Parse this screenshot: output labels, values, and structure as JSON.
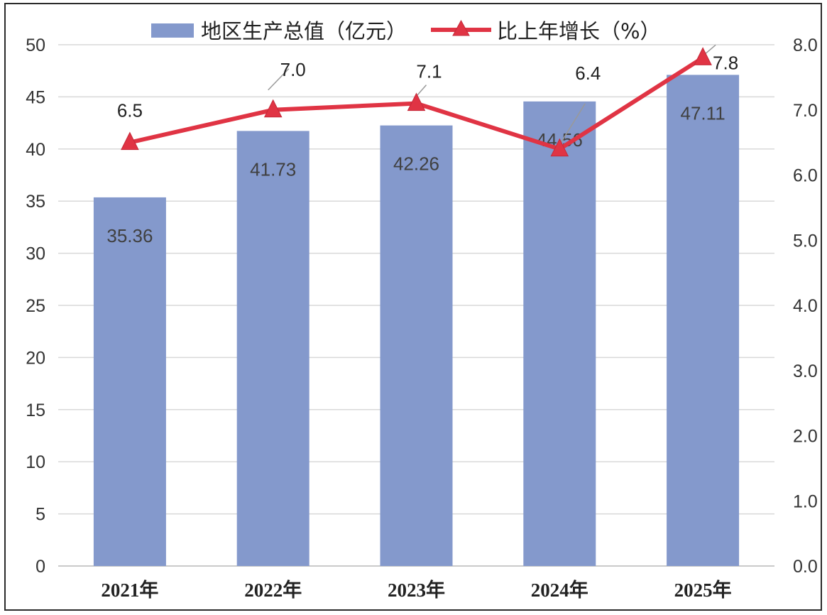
{
  "chart_data": {
    "type": "bar",
    "categories": [
      "2021年",
      "2022年",
      "2023年",
      "2024年",
      "2025年"
    ],
    "series": [
      {
        "name": "地区生产总值（亿元）",
        "type": "bar",
        "axis": "left",
        "color": "#8499cc",
        "values": [
          35.36,
          41.73,
          42.26,
          44.56,
          47.11
        ],
        "labels": [
          "35.36",
          "41.73",
          "42.26",
          "44.56",
          "47.11"
        ]
      },
      {
        "name": "比上年增长（%）",
        "type": "line",
        "axis": "right",
        "color": "#e03444",
        "marker": "triangle",
        "values": [
          6.5,
          7.0,
          7.1,
          6.4,
          7.8
        ],
        "labels": [
          "6.5",
          "7.0",
          "7.1",
          "6.4",
          "7.8"
        ]
      }
    ],
    "y_left": {
      "min": 0,
      "max": 50,
      "step": 5,
      "ticks": [
        "0",
        "5",
        "10",
        "15",
        "20",
        "25",
        "30",
        "35",
        "40",
        "45",
        "50"
      ]
    },
    "y_right": {
      "min": 0,
      "max": 8,
      "step": 1,
      "ticks": [
        "0.0",
        "1.0",
        "2.0",
        "3.0",
        "4.0",
        "5.0",
        "6.0",
        "7.0",
        "8.0"
      ]
    },
    "grid": true,
    "legend_position": "top"
  }
}
